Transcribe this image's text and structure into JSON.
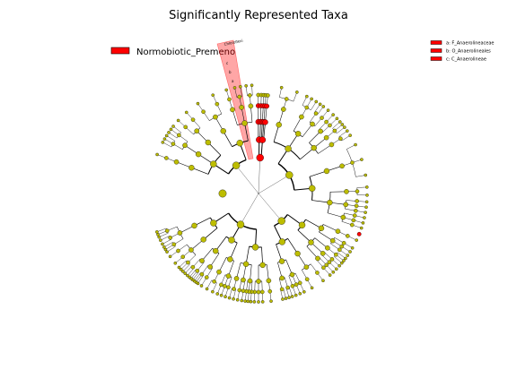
{
  "chart_data": {
    "type": "cladogram",
    "title": "Significantly Represented Taxa",
    "legend": {
      "group_label": "Normobiotic_Premeno",
      "group_color": "#ff0000",
      "taxa": [
        {
          "key": "a",
          "name": "F_Anaerolineaceae",
          "label": "a: F_Anaerolineaceae"
        },
        {
          "key": "b",
          "name": "O_Anaerolineales",
          "label": "b: O_Anaerolineales"
        },
        {
          "key": "c",
          "name": "C_Anaerolineae",
          "label": "c: C_Anaerolineae"
        }
      ]
    },
    "highlight": {
      "clade_text": "Chloroflexi",
      "letters": [
        "a",
        "b",
        "c"
      ],
      "color": "#ff0000"
    },
    "node_color": "#bdbd00",
    "levels": 6
  }
}
